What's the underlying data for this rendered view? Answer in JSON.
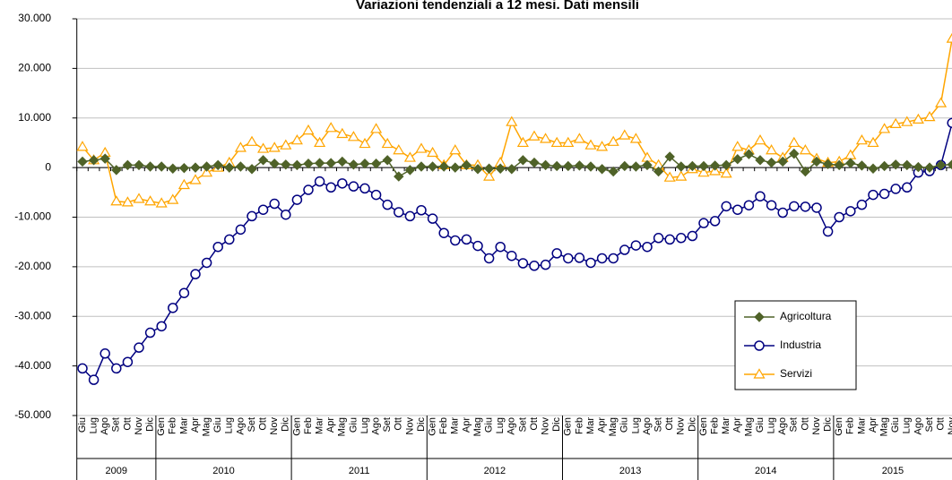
{
  "chart_data": {
    "type": "line",
    "title": "Variazioni tendenziali a 12 mesi. Dati mensili",
    "categories": [
      "Giu",
      "Lug",
      "Ago",
      "Set",
      "Ott",
      "Nov",
      "Dic",
      "Gen",
      "Feb",
      "Mar",
      "Apr",
      "Mag",
      "Giu",
      "Lug",
      "Ago",
      "Set",
      "Ott",
      "Nov",
      "Dic",
      "Gen",
      "Feb",
      "Mar",
      "Apr",
      "Mag",
      "Giu",
      "Lug",
      "Ago",
      "Set",
      "Ott",
      "Nov",
      "Dic",
      "Gen",
      "Feb",
      "Mar",
      "Apr",
      "Mag",
      "Giu",
      "Lug",
      "Ago",
      "Set",
      "Ott",
      "Nov",
      "Dic",
      "Gen",
      "Feb",
      "Mar",
      "Apr",
      "Mag",
      "Giu",
      "Lug",
      "Ago",
      "Set",
      "Ott",
      "Nov",
      "Dic",
      "Gen",
      "Feb",
      "Mar",
      "Apr",
      "Mag",
      "Giu",
      "Lug",
      "Ago",
      "Set",
      "Ott",
      "Nov",
      "Dic",
      "Gen",
      "Feb",
      "Mar",
      "Apr",
      "Mag",
      "Giu",
      "Lug",
      "Ago",
      "Set",
      "Ott",
      "Nov"
    ],
    "category_groups": [
      "2009",
      "2010",
      "2011",
      "2012",
      "2013",
      "2014",
      "2015"
    ],
    "series": [
      {
        "name": "Agricoltura",
        "color": "#4f6228",
        "marker": "diamond",
        "values": [
          1200,
          1500,
          1800,
          -500,
          500,
          500,
          200,
          200,
          -200,
          -100,
          0,
          200,
          500,
          0,
          200,
          -300,
          1500,
          800,
          600,
          500,
          800,
          900,
          900,
          1200,
          600,
          800,
          800,
          1500,
          -1800,
          -500,
          200,
          200,
          200,
          0,
          500,
          -300,
          -200,
          -200,
          -300,
          1500,
          1000,
          500,
          300,
          300,
          400,
          200,
          -300,
          -800,
          300,
          200,
          500,
          -800,
          2200,
          200,
          300,
          300,
          400,
          500,
          1700,
          2700,
          1500,
          1000,
          1200,
          2800,
          -800,
          1200,
          700,
          500,
          900,
          400,
          -200,
          300,
          600,
          500,
          100,
          0,
          500,
          600
        ]
      },
      {
        "name": "Industria",
        "color": "#000080",
        "marker": "circle",
        "values": [
          -40500,
          -42800,
          -37500,
          -40500,
          -39200,
          -36300,
          -33300,
          -32000,
          -28300,
          -25300,
          -21500,
          -19200,
          -16000,
          -14500,
          -12500,
          -9800,
          -8500,
          -7300,
          -9500,
          -6500,
          -4500,
          -2800,
          -4000,
          -3200,
          -3800,
          -4200,
          -5500,
          -7500,
          -9000,
          -9800,
          -8600,
          -10300,
          -13200,
          -14700,
          -14500,
          -15800,
          -18300,
          -16000,
          -17800,
          -19300,
          -19800,
          -19600,
          -17300,
          -18300,
          -18200,
          -19200,
          -18300,
          -18300,
          -16600,
          -15700,
          -16000,
          -14200,
          -14500,
          -14200,
          -13800,
          -11200,
          -10800,
          -7800,
          -8500,
          -7600,
          -5800,
          -7600,
          -9100,
          -7800,
          -7900,
          -8100,
          -12900,
          -10000,
          -8800,
          -7500,
          -5500,
          -5300,
          -4300,
          -4000,
          -1000,
          -700,
          500,
          9000
        ]
      },
      {
        "name": "Servizi",
        "color": "#ffa500",
        "marker": "triangle",
        "values": [
          4200,
          1500,
          3000,
          -6800,
          -7000,
          -6300,
          -6800,
          -7200,
          -6500,
          -3500,
          -2500,
          -1000,
          0,
          1000,
          4000,
          5200,
          3800,
          4000,
          4500,
          5500,
          7500,
          5000,
          8000,
          6800,
          6200,
          4800,
          7800,
          4800,
          3500,
          2000,
          3800,
          3000,
          500,
          3500,
          500,
          500,
          -1800,
          1000,
          9200,
          5000,
          6300,
          5800,
          5000,
          5000,
          5800,
          4500,
          4200,
          5200,
          6500,
          5800,
          2000,
          500,
          -2000,
          -1800,
          -300,
          -1000,
          -700,
          -1200,
          4200,
          3500,
          5500,
          3500,
          2000,
          5000,
          3500,
          1800,
          1000,
          1200,
          2500,
          5500,
          5000,
          7800,
          8800,
          9200,
          9700,
          10200,
          13000,
          26000
        ]
      }
    ],
    "ylim": [
      -50000,
      30000
    ],
    "yticks": [
      {
        "value": -50000,
        "label": "-50.000"
      },
      {
        "value": -40000,
        "label": "-40.000"
      },
      {
        "value": -30000,
        "label": "-30.000"
      },
      {
        "value": -20000,
        "label": "-20.000"
      },
      {
        "value": -10000,
        "label": "-10.000"
      },
      0,
      {
        "value": 10000,
        "label": "10.000"
      },
      {
        "value": 20000,
        "label": "20.000"
      },
      {
        "value": 30000,
        "label": "30.000"
      }
    ],
    "grid": true,
    "legend": "lower right"
  }
}
